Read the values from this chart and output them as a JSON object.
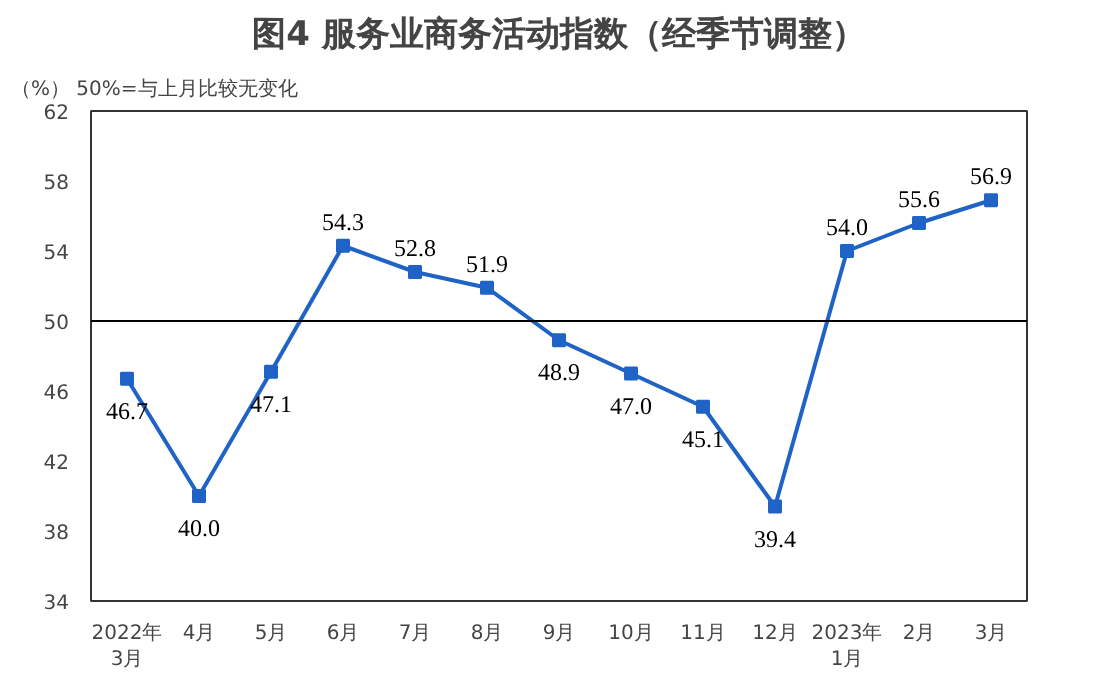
{
  "chart_data": {
    "type": "line",
    "title": "图4 服务业商务活动指数（经季节调整）",
    "ylabel": "（%）",
    "annotations": [
      "50%=与上月比较无变化"
    ],
    "categories": [
      "2022年\n3月",
      "4月",
      "5月",
      "6月",
      "7月",
      "8月",
      "9月",
      "10月",
      "11月",
      "12月",
      "2023年\n1月",
      "2月",
      "3月"
    ],
    "series": [
      {
        "color": "#1f63c6",
        "values": [
          46.7,
          40.0,
          47.1,
          54.3,
          52.8,
          51.9,
          48.9,
          47.0,
          45.1,
          39.4,
          54.0,
          55.6,
          56.9
        ],
        "value_labels": [
          "46.7",
          "40.0",
          "47.1",
          "54.3",
          "52.8",
          "51.9",
          "48.9",
          "47.0",
          "45.1",
          "39.4",
          "54.0",
          "55.6",
          "56.9"
        ]
      }
    ],
    "ylim": [
      34,
      62
    ],
    "yticks": [
      34,
      38,
      42,
      46,
      50,
      54,
      58,
      62
    ],
    "ref_lines": [
      {
        "axis": "y",
        "value": 50,
        "color": "#000000"
      }
    ],
    "marker": "square",
    "line_style": "solid",
    "grid": false
  }
}
